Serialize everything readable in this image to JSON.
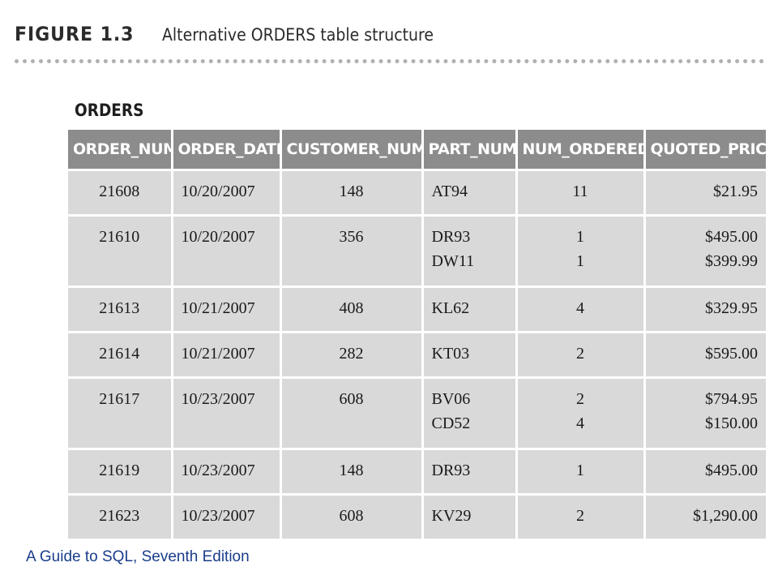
{
  "figure": {
    "number": "FIGURE 1.3",
    "title": "Alternative ORDERS table structure"
  },
  "table": {
    "name": "ORDERS",
    "columns": [
      "ORDER_NUM",
      "ORDER_DATE",
      "CUSTOMER_NUM",
      "PART_NUM",
      "NUM_ORDERED",
      "QUOTED_PRICE"
    ],
    "rows": [
      {
        "order_num": "21608",
        "order_date": "10/20/2007",
        "customer_num": "148",
        "part_num": [
          "AT94"
        ],
        "num_ordered": [
          "11"
        ],
        "quoted_price": [
          "$21.95"
        ]
      },
      {
        "order_num": "21610",
        "order_date": "10/20/2007",
        "customer_num": "356",
        "part_num": [
          "DR93",
          "DW11"
        ],
        "num_ordered": [
          "1",
          "1"
        ],
        "quoted_price": [
          "$495.00",
          "$399.99"
        ]
      },
      {
        "order_num": "21613",
        "order_date": "10/21/2007",
        "customer_num": "408",
        "part_num": [
          "KL62"
        ],
        "num_ordered": [
          "4"
        ],
        "quoted_price": [
          "$329.95"
        ]
      },
      {
        "order_num": "21614",
        "order_date": "10/21/2007",
        "customer_num": "282",
        "part_num": [
          "KT03"
        ],
        "num_ordered": [
          "2"
        ],
        "quoted_price": [
          "$595.00"
        ]
      },
      {
        "order_num": "21617",
        "order_date": "10/23/2007",
        "customer_num": "608",
        "part_num": [
          "BV06",
          "CD52"
        ],
        "num_ordered": [
          "2",
          "4"
        ],
        "quoted_price": [
          "$794.95",
          "$150.00"
        ]
      },
      {
        "order_num": "21619",
        "order_date": "10/23/2007",
        "customer_num": "148",
        "part_num": [
          "DR93"
        ],
        "num_ordered": [
          "1"
        ],
        "quoted_price": [
          "$495.00"
        ]
      },
      {
        "order_num": "21623",
        "order_date": "10/23/2007",
        "customer_num": "608",
        "part_num": [
          "KV29"
        ],
        "num_ordered": [
          "2"
        ],
        "quoted_price": [
          "$1,290.00"
        ]
      }
    ]
  },
  "footer": {
    "text": "A Guide to SQL, Seventh Edition"
  }
}
